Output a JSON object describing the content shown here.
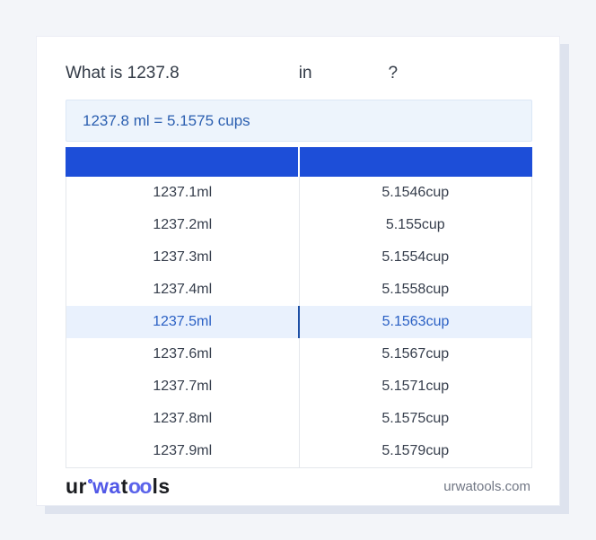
{
  "window": {
    "background": "#f3f5f9"
  },
  "question": {
    "prefix": "What is 1237.8",
    "connector": "in",
    "suffix": "?"
  },
  "result": {
    "text": "1237.8 ml = 5.1575 cups"
  },
  "table": {
    "columns": [
      "",
      ""
    ],
    "highlighted_row": 4,
    "rows": [
      {
        "ml": "1237.1ml",
        "cups": "5.1546cup"
      },
      {
        "ml": "1237.2ml",
        "cups": "5.155cup"
      },
      {
        "ml": "1237.3ml",
        "cups": "5.1554cup"
      },
      {
        "ml": "1237.4ml",
        "cups": "5.1558cup"
      },
      {
        "ml": "1237.5ml",
        "cups": "5.1563cup"
      },
      {
        "ml": "1237.6ml",
        "cups": "5.1567cup"
      },
      {
        "ml": "1237.7ml",
        "cups": "5.1571cup"
      },
      {
        "ml": "1237.8ml",
        "cups": "5.1575cup"
      },
      {
        "ml": "1237.9ml",
        "cups": "5.1579cup"
      }
    ]
  },
  "footer": {
    "logo": {
      "seg1": "ur",
      "seg2": "wa",
      "seg3": "t",
      "seg4": "oo",
      "seg5": "ls"
    },
    "site": "urwatools.com"
  },
  "colors": {
    "header_blue": "#1d4ed8",
    "highlight_bg": "#e9f1fd",
    "highlight_text": "#2a60c4",
    "highlight_divider": "#1d4fa5",
    "result_bg": "#edf4fc",
    "result_text": "#2b5fb0",
    "logo_blue": "#5158e7",
    "cell_text": "#363e4c",
    "page_bg": "#f3f5f9"
  }
}
